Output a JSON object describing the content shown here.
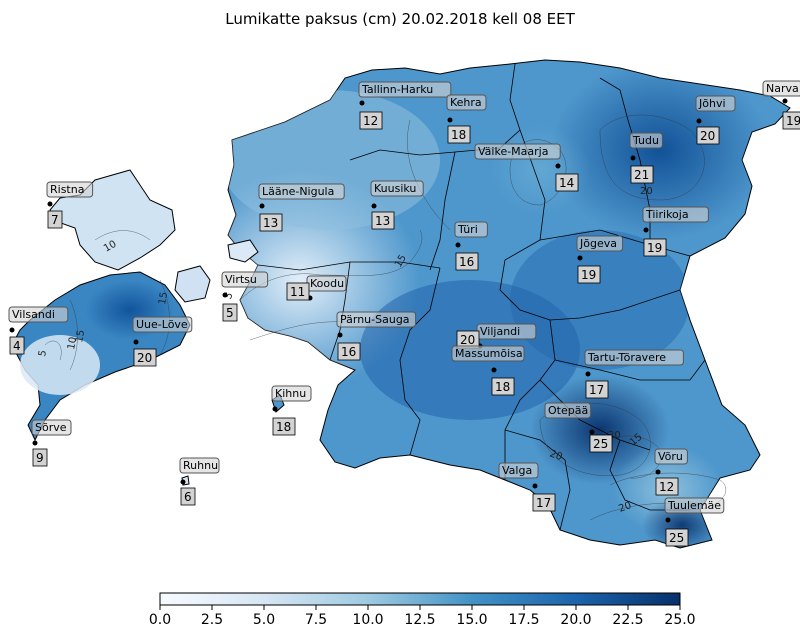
{
  "title": "Lumikatte paksus (cm) 20.02.2018 kell 08 EET",
  "colors": {
    "scale_low": "#f7fbff",
    "scale_mid": "#6baed6",
    "scale_high": "#08306b",
    "label_box": "#d3d3d3",
    "border": "#000000"
  },
  "stations": [
    {
      "name": "Tallinn-Harku",
      "value": 12
    },
    {
      "name": "Kehra",
      "value": 18
    },
    {
      "name": "Väike-Maarja",
      "value": 14
    },
    {
      "name": "Tudu",
      "value": 21
    },
    {
      "name": "Jõhvi",
      "value": 20
    },
    {
      "name": "Narva",
      "value": 19
    },
    {
      "name": "Ristna",
      "value": 7
    },
    {
      "name": "Lääne-Nigula",
      "value": 13
    },
    {
      "name": "Kuusiku",
      "value": 13
    },
    {
      "name": "Türi",
      "value": 16
    },
    {
      "name": "Jõgeva",
      "value": 19
    },
    {
      "name": "Tiirikoja",
      "value": 19
    },
    {
      "name": "Virtsu",
      "value": 5
    },
    {
      "name": "Koodu",
      "value": 11
    },
    {
      "name": "Vilsandi",
      "value": 4
    },
    {
      "name": "Uue-Lõve",
      "value": 20
    },
    {
      "name": "Pärnu-Sauga",
      "value": 16
    },
    {
      "name": "Viljandi",
      "value": 20
    },
    {
      "name": "Massumõisa",
      "value": 18
    },
    {
      "name": "Tartu-Tõravere",
      "value": 17
    },
    {
      "name": "Kihnu",
      "value": 18
    },
    {
      "name": "Sõrve",
      "value": 9
    },
    {
      "name": "Otepää",
      "value": 25
    },
    {
      "name": "Võru",
      "value": 12
    },
    {
      "name": "Ruhnu",
      "value": 6
    },
    {
      "name": "Valga",
      "value": 17
    },
    {
      "name": "Tuulemäe",
      "value": 25
    }
  ],
  "contour_labels": [
    "10",
    "5",
    "10",
    "15",
    "15",
    "15",
    "20",
    "20",
    "20",
    "15",
    "20",
    "5"
  ],
  "colorbar": {
    "min": 0,
    "max": 25,
    "ticks": [
      "0.0",
      "2.5",
      "5.0",
      "7.5",
      "10.0",
      "12.5",
      "15.0",
      "17.5",
      "20.0",
      "22.5",
      "25.0"
    ]
  }
}
